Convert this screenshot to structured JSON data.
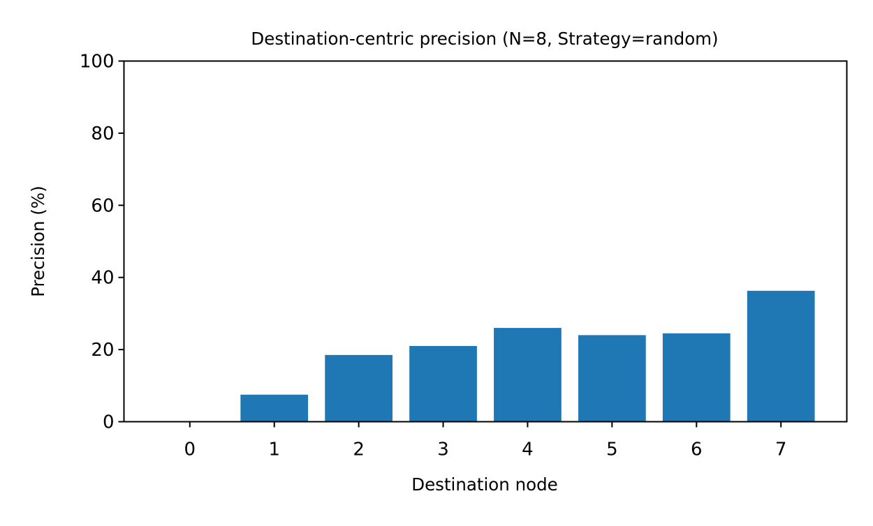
{
  "chart_data": {
    "type": "bar",
    "title": "Destination-centric precision (N=8, Strategy=random)",
    "xlabel": "Destination node",
    "ylabel": "Precision (%)",
    "categories": [
      "0",
      "1",
      "2",
      "3",
      "4",
      "5",
      "6",
      "7"
    ],
    "values": [
      0,
      7.5,
      18.5,
      21,
      26,
      24,
      24.5,
      36.3
    ],
    "ylim": [
      0,
      100
    ],
    "yticks": [
      0,
      20,
      40,
      60,
      80,
      100
    ],
    "bar_color": "#1f77b4",
    "grid": false,
    "legend": false
  }
}
